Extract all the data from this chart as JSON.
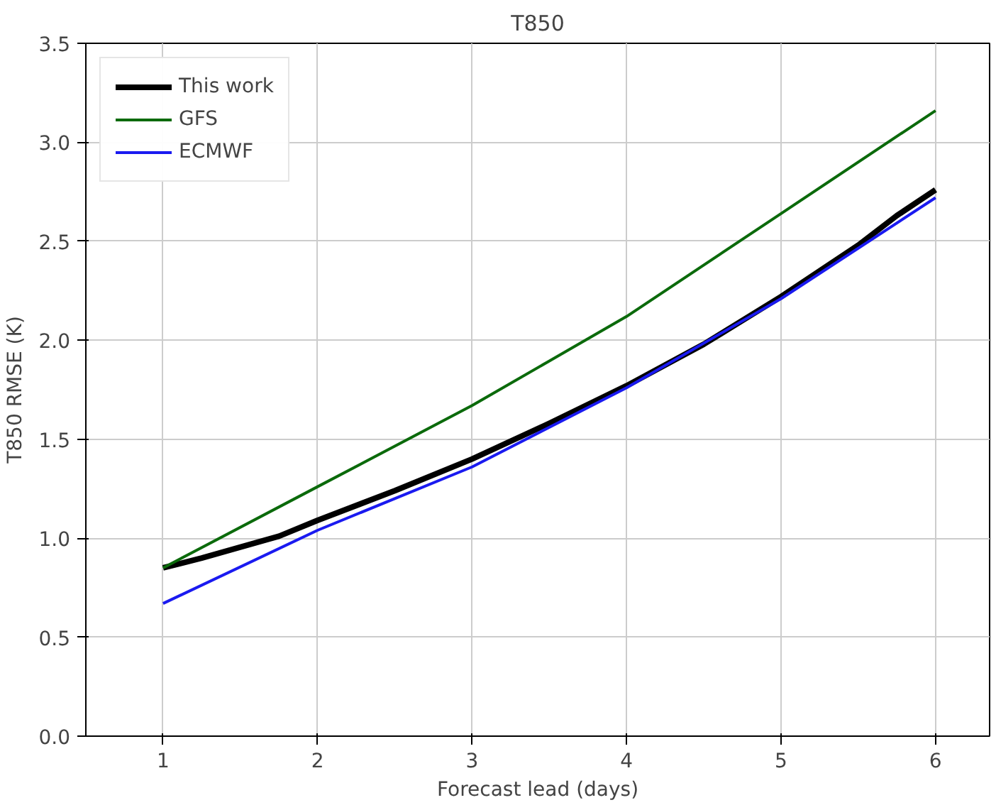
{
  "chart_data": {
    "type": "line",
    "title": "T850",
    "xlabel": "Forecast lead (days)",
    "ylabel": "T850 RMSE (K)",
    "xlim": [
      0.5,
      6.35
    ],
    "xticks": [
      1,
      2,
      3,
      4,
      5,
      6
    ],
    "ylim": [
      0,
      3.5
    ],
    "yticks": [
      {
        "value": 0,
        "label": "0.0"
      },
      0.5,
      {
        "value": 1,
        "label": "1.0"
      },
      1.5,
      {
        "value": 2,
        "label": "2.0"
      },
      2.5,
      {
        "value": 3,
        "label": "3.0"
      },
      3.5
    ],
    "grid": true,
    "legend": "top left",
    "series": [
      {
        "name": "This work",
        "color": "#000000",
        "x": [
          1,
          1.25,
          1.75,
          2,
          2.5,
          3,
          3.5,
          4,
          4.5,
          5,
          5.5,
          5.75,
          6
        ],
        "values": [
          0.85,
          0.9,
          1.01,
          1.09,
          1.24,
          1.4,
          1.58,
          1.77,
          1.98,
          2.22,
          2.48,
          2.63,
          2.76
        ]
      },
      {
        "name": "GFS",
        "color": "#0b6a0b",
        "x": [
          1,
          2,
          3,
          4,
          5,
          6
        ],
        "values": [
          0.85,
          1.26,
          1.67,
          2.12,
          2.64,
          3.16
        ]
      },
      {
        "name": "ECMWF",
        "color": "#1a1af0",
        "x": [
          1,
          2,
          3,
          4,
          5,
          6
        ],
        "values": [
          0.67,
          1.04,
          1.36,
          1.76,
          2.21,
          2.72
        ]
      }
    ]
  }
}
